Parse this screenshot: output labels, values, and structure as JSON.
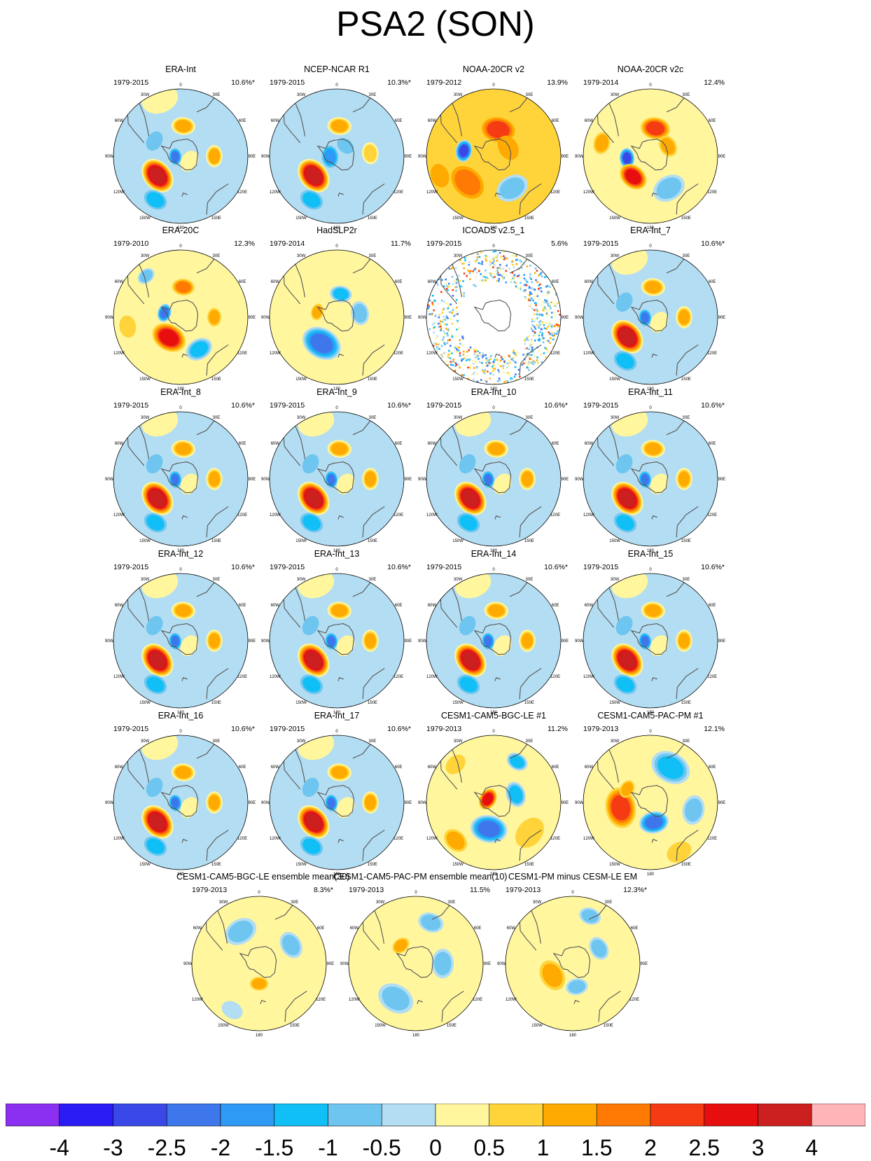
{
  "title": "PSA2 (SON)",
  "lon_labels": {
    "top": "0",
    "top_right": "30E",
    "right_upper": "60E",
    "right": "90E",
    "right_lower": "120E",
    "bottom_right": "150E",
    "bottom": "180",
    "bottom_left": "150W",
    "left_lower": "120W",
    "left": "90W",
    "left_upper": "60W",
    "top_left": "30W"
  },
  "chart_data": {
    "type": "heatmap",
    "title": "PSA2 (SON)",
    "projection": "south polar stereographic",
    "colorbar": {
      "labels": [
        "-4",
        "-3",
        "-2.5",
        "-2",
        "-1.5",
        "-1",
        "-0.5",
        "0",
        "0.5",
        "1",
        "1.5",
        "2",
        "2.5",
        "3",
        "4"
      ],
      "colors": [
        "#8b2ff0",
        "#2b1bf4",
        "#3a48e8",
        "#3e76ec",
        "#2e9af5",
        "#0fbff5",
        "#6ec6f0",
        "#b3ddf2",
        "#fff69e",
        "#ffd43a",
        "#ffaa00",
        "#ff7a05",
        "#f53b14",
        "#e60e0e",
        "#cc1f1f",
        "#ffb4b8"
      ]
    },
    "panels": [
      {
        "name": "ERA-Int",
        "years": "1979-2015",
        "variance": "10.6%*",
        "pattern": "era"
      },
      {
        "name": "NCEP-NCAR R1",
        "years": "1979-2015",
        "variance": "10.3%*",
        "pattern": "ncep"
      },
      {
        "name": "NOAA-20CR v2",
        "years": "1979-2012",
        "variance": "13.9%",
        "pattern": "noaa2"
      },
      {
        "name": "NOAA-20CR v2c",
        "years": "1979-2014",
        "variance": "12.4%",
        "pattern": "noaa2c"
      },
      {
        "name": "ERA-20C",
        "years": "1979-2010",
        "variance": "12.3%",
        "pattern": "era20c"
      },
      {
        "name": "HadSLP2r",
        "years": "1979-2014",
        "variance": "11.7%",
        "pattern": "hadslp"
      },
      {
        "name": "ICOADS v2.5_1",
        "years": "1979-2015",
        "variance": "5.6%",
        "pattern": "icoads"
      },
      {
        "name": "ERA-Int_7",
        "years": "1979-2015",
        "variance": "10.6%*",
        "pattern": "era"
      },
      {
        "name": "ERA-Int_8",
        "years": "1979-2015",
        "variance": "10.6%*",
        "pattern": "era"
      },
      {
        "name": "ERA-Int_9",
        "years": "1979-2015",
        "variance": "10.6%*",
        "pattern": "era"
      },
      {
        "name": "ERA-Int_10",
        "years": "1979-2015",
        "variance": "10.6%*",
        "pattern": "era"
      },
      {
        "name": "ERA-Int_11",
        "years": "1979-2015",
        "variance": "10.6%*",
        "pattern": "era"
      },
      {
        "name": "ERA-Int_12",
        "years": "1979-2015",
        "variance": "10.6%*",
        "pattern": "era"
      },
      {
        "name": "ERA-Int_13",
        "years": "1979-2015",
        "variance": "10.6%*",
        "pattern": "era"
      },
      {
        "name": "ERA-Int_14",
        "years": "1979-2015",
        "variance": "10.6%*",
        "pattern": "era"
      },
      {
        "name": "ERA-Int_15",
        "years": "1979-2015",
        "variance": "10.6%*",
        "pattern": "era"
      },
      {
        "name": "ERA-Int_16",
        "years": "1979-2015",
        "variance": "10.6%*",
        "pattern": "era"
      },
      {
        "name": "ERA-Int_17",
        "years": "1979-2015",
        "variance": "10.6%*",
        "pattern": "era"
      },
      {
        "name": "CESM1-CAM5-BGC-LE #1",
        "years": "1979-2013",
        "variance": "11.2%",
        "pattern": "bgcle1"
      },
      {
        "name": "CESM1-CAM5-PAC-PM #1",
        "years": "1979-2013",
        "variance": "12.1%",
        "pattern": "pacpm1"
      },
      {
        "name": "CESM1-CAM5-BGC-LE ensemble mean(30)",
        "years": "1979-2013",
        "variance": "8.3%*",
        "pattern": "bgcmean"
      },
      {
        "name": "CESM1-CAM5-PAC-PM ensemble mean(10)",
        "years": "1979-2013",
        "variance": "11.5%",
        "pattern": "pacmean"
      },
      {
        "name": "CESM1-PM minus CESM-LE EM",
        "years": "1979-2013",
        "variance": "12.3%*",
        "pattern": "diff"
      }
    ]
  }
}
